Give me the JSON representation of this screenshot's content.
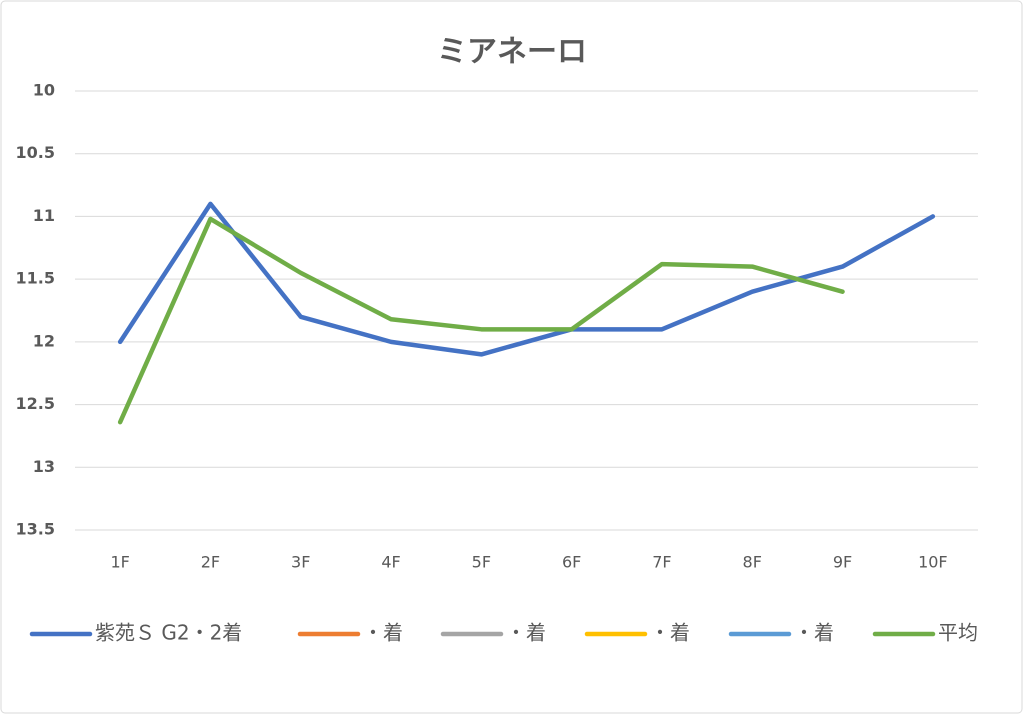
{
  "chart_data": {
    "type": "line",
    "title": "ミアネーロ",
    "categories": [
      "1F",
      "2F",
      "3F",
      "4F",
      "5F",
      "6F",
      "7F",
      "8F",
      "9F",
      "10F"
    ],
    "series": [
      {
        "name": "紫苑Ｓ G2・2着",
        "color": "#4472c4",
        "values": [
          12.0,
          10.9,
          11.8,
          12.0,
          12.1,
          11.9,
          11.9,
          11.6,
          11.4,
          11.0
        ]
      },
      {
        "name": "・着",
        "color": "#ed7d31",
        "values": [
          null,
          null,
          null,
          null,
          null,
          null,
          null,
          null,
          null,
          null
        ]
      },
      {
        "name": "・着",
        "color": "#a5a5a5",
        "values": [
          null,
          null,
          null,
          null,
          null,
          null,
          null,
          null,
          null,
          null
        ]
      },
      {
        "name": "・着",
        "color": "#ffc000",
        "values": [
          null,
          null,
          null,
          null,
          null,
          null,
          null,
          null,
          null,
          null
        ]
      },
      {
        "name": "・着",
        "color": "#5b9bd5",
        "values": [
          null,
          null,
          null,
          null,
          null,
          null,
          null,
          null,
          null,
          null
        ]
      },
      {
        "name": "平均",
        "color": "#70ad47",
        "values": [
          12.64,
          11.02,
          11.45,
          11.82,
          11.9,
          11.9,
          11.38,
          11.4,
          11.6,
          null
        ]
      }
    ],
    "ylim": [
      10,
      13.5
    ],
    "y_inverted": true,
    "yticks": [
      10,
      10.5,
      11,
      11.5,
      12,
      12.5,
      13,
      13.5
    ],
    "grid": true,
    "legend": "bottom"
  }
}
